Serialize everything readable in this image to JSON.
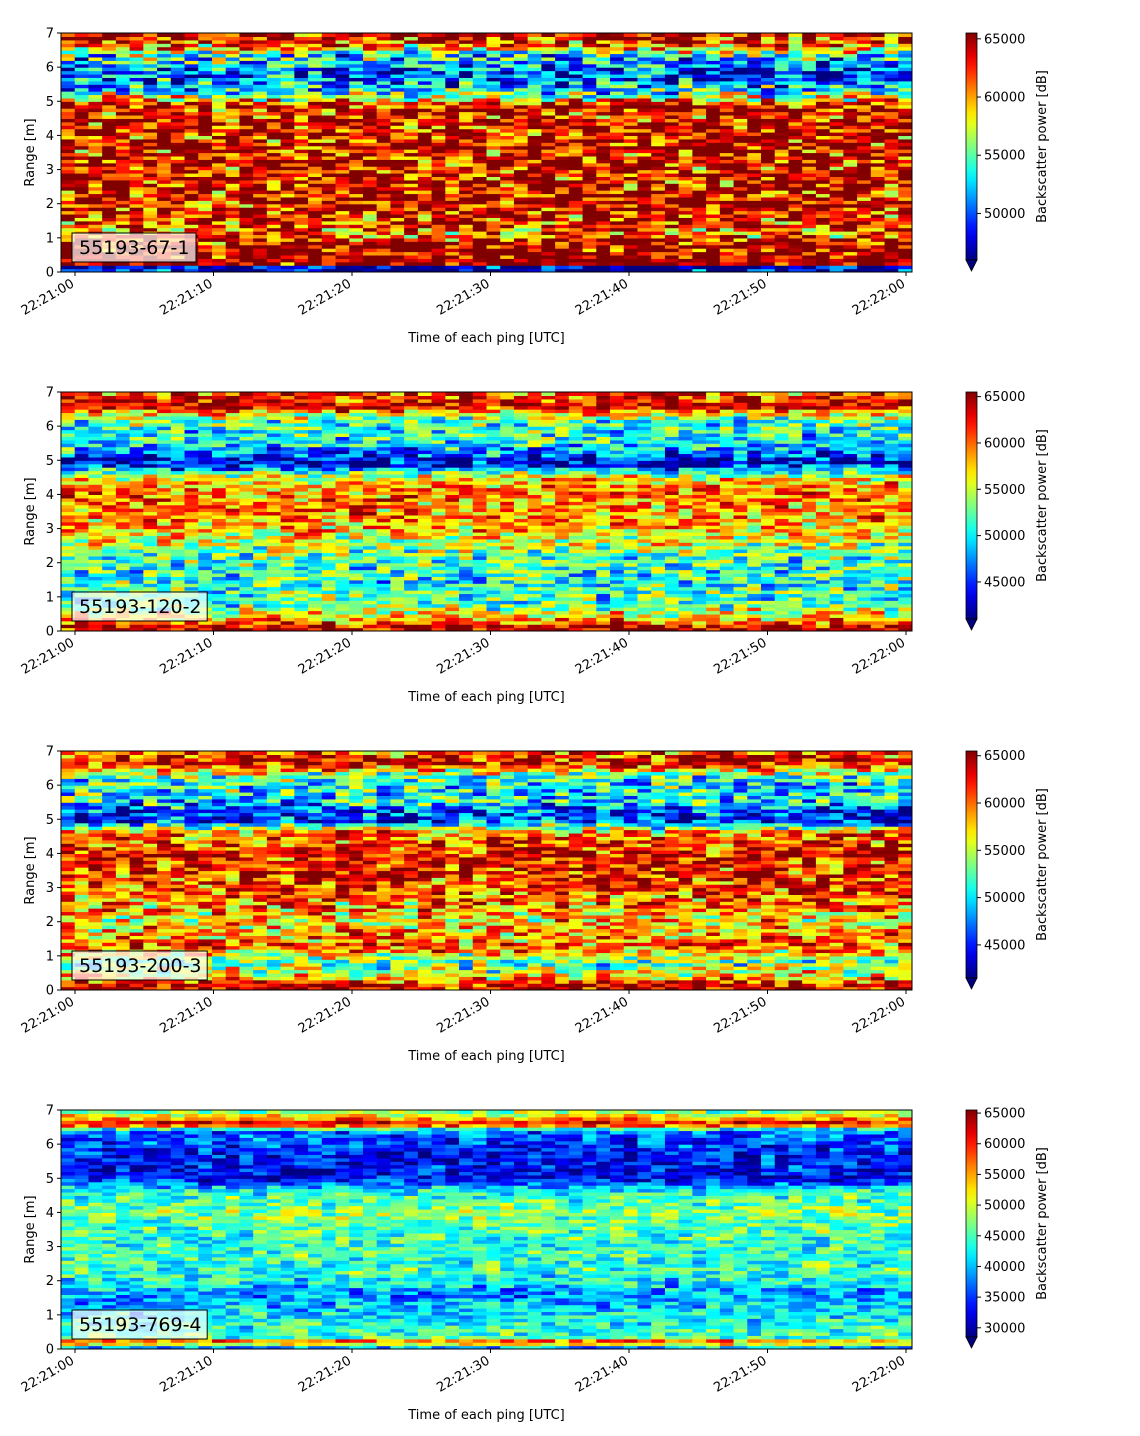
{
  "chart_data": [
    {
      "type": "heatmap",
      "label": "55193-67-1",
      "xlabel": "Time of each ping [UTC]",
      "ylabel": "Range [m]",
      "x_tick_labels": [
        "22:21:00",
        "22:21:10",
        "22:21:20",
        "22:21:30",
        "22:21:40",
        "22:21:50",
        "22:22:00"
      ],
      "x_range_seconds": [
        0,
        60
      ],
      "y_ticks": [
        0,
        1,
        2,
        3,
        4,
        5,
        6,
        7
      ],
      "ylim": [
        0,
        7
      ],
      "colorbar": {
        "label": "Backscatter power [dB]",
        "range": [
          46000,
          65500
        ],
        "ticks": [
          50000,
          55000,
          60000,
          65000
        ],
        "extend": "min",
        "colormap": "jet"
      },
      "profile": [
        {
          "range": 0.15,
          "value": 47000
        },
        {
          "range": 0.25,
          "value": 65000
        },
        {
          "range": 0.9,
          "value": 64000
        },
        {
          "range": 1.1,
          "value": 61000
        },
        {
          "range": 2.0,
          "value": 64000
        },
        {
          "range": 3.0,
          "value": 63000
        },
        {
          "range": 4.0,
          "value": 64000
        },
        {
          "range": 4.9,
          "value": 63000
        },
        {
          "range": 5.3,
          "value": 53000
        },
        {
          "range": 5.8,
          "value": 49000
        },
        {
          "range": 6.3,
          "value": 53000
        },
        {
          "range": 6.7,
          "value": 62000
        },
        {
          "range": 7.0,
          "value": 65000
        }
      ],
      "variability": 5500
    },
    {
      "type": "heatmap",
      "label": "55193-120-2",
      "xlabel": "Time of each ping [UTC]",
      "ylabel": "Range [m]",
      "x_tick_labels": [
        "22:21:00",
        "22:21:10",
        "22:21:20",
        "22:21:30",
        "22:21:40",
        "22:21:50",
        "22:22:00"
      ],
      "x_range_seconds": [
        0,
        60
      ],
      "y_ticks": [
        0,
        1,
        2,
        3,
        4,
        5,
        6,
        7
      ],
      "ylim": [
        0,
        7
      ],
      "colorbar": {
        "label": "Backscatter power [dB]",
        "range": [
          41000,
          65500
        ],
        "ticks": [
          45000,
          50000,
          55000,
          60000,
          65000
        ],
        "extend": "min",
        "colormap": "jet"
      },
      "profile": [
        {
          "range": 0.15,
          "value": 64000
        },
        {
          "range": 0.35,
          "value": 58000
        },
        {
          "range": 0.8,
          "value": 52000
        },
        {
          "range": 1.5,
          "value": 51000
        },
        {
          "range": 2.2,
          "value": 52000
        },
        {
          "range": 3.0,
          "value": 58000
        },
        {
          "range": 4.0,
          "value": 60000
        },
        {
          "range": 4.5,
          "value": 57000
        },
        {
          "range": 4.9,
          "value": 43000
        },
        {
          "range": 5.5,
          "value": 50000
        },
        {
          "range": 6.2,
          "value": 52000
        },
        {
          "range": 6.6,
          "value": 64000
        },
        {
          "range": 7.0,
          "value": 60000
        }
      ],
      "variability": 5000
    },
    {
      "type": "heatmap",
      "label": "55193-200-3",
      "xlabel": "Time of each ping [UTC]",
      "ylabel": "Range [m]",
      "x_tick_labels": [
        "22:21:00",
        "22:21:10",
        "22:21:20",
        "22:21:30",
        "22:21:40",
        "22:21:50",
        "22:22:00"
      ],
      "x_range_seconds": [
        0,
        60
      ],
      "y_ticks": [
        0,
        1,
        2,
        3,
        4,
        5,
        6,
        7
      ],
      "ylim": [
        0,
        7
      ],
      "colorbar": {
        "label": "Backscatter power [dB]",
        "range": [
          41500,
          65500
        ],
        "ticks": [
          45000,
          50000,
          55000,
          60000,
          65000
        ],
        "extend": "min",
        "colormap": "jet"
      },
      "profile": [
        {
          "range": 0.15,
          "value": 64500
        },
        {
          "range": 0.35,
          "value": 58000
        },
        {
          "range": 0.8,
          "value": 52000
        },
        {
          "range": 1.3,
          "value": 61000
        },
        {
          "range": 2.0,
          "value": 57000
        },
        {
          "range": 3.0,
          "value": 61000
        },
        {
          "range": 4.0,
          "value": 63000
        },
        {
          "range": 4.6,
          "value": 60000
        },
        {
          "range": 5.0,
          "value": 44000
        },
        {
          "range": 5.6,
          "value": 51000
        },
        {
          "range": 6.2,
          "value": 51000
        },
        {
          "range": 6.7,
          "value": 64000
        },
        {
          "range": 7.0,
          "value": 60000
        }
      ],
      "variability": 5500
    },
    {
      "type": "heatmap",
      "label": "55193-769-4",
      "xlabel": "Time of each ping [UTC]",
      "ylabel": "Range [m]",
      "x_tick_labels": [
        "22:21:00",
        "22:21:10",
        "22:21:20",
        "22:21:30",
        "22:21:40",
        "22:21:50",
        "22:22:00"
      ],
      "x_range_seconds": [
        0,
        60
      ],
      "y_ticks": [
        0,
        1,
        2,
        3,
        4,
        5,
        6,
        7
      ],
      "ylim": [
        0,
        7
      ],
      "colorbar": {
        "label": "Backscatter power [dB]",
        "range": [
          28500,
          65500
        ],
        "ticks": [
          30000,
          35000,
          40000,
          45000,
          50000,
          55000,
          60000,
          65000
        ],
        "extend": "min",
        "colormap": "jet"
      },
      "profile": [
        {
          "range": 0.1,
          "value": 40000
        },
        {
          "range": 0.2,
          "value": 62000
        },
        {
          "range": 0.35,
          "value": 45000
        },
        {
          "range": 1.0,
          "value": 42000
        },
        {
          "range": 1.6,
          "value": 38000
        },
        {
          "range": 2.3,
          "value": 45000
        },
        {
          "range": 3.0,
          "value": 44000
        },
        {
          "range": 4.0,
          "value": 47000
        },
        {
          "range": 4.6,
          "value": 44000
        },
        {
          "range": 5.0,
          "value": 33000
        },
        {
          "range": 5.8,
          "value": 34000
        },
        {
          "range": 6.4,
          "value": 37000
        },
        {
          "range": 6.6,
          "value": 63000
        },
        {
          "range": 7.0,
          "value": 45000
        }
      ],
      "variability": 5000
    }
  ]
}
